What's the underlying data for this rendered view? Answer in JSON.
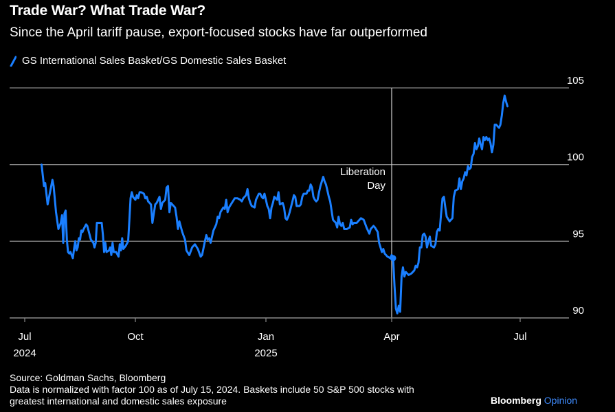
{
  "header": {
    "title": "Trade War? What Trade War?",
    "subtitle": "Since the April tariff pause, export-focused stocks have far outperformed"
  },
  "footer": {
    "source": "Source: Goldman Sachs, Bloomberg",
    "note_line1": "Data is normalized with factor 100 as of July 15, 2024. Baskets include 50 S&P 500 stocks with",
    "note_line2": "greatest international and domestic sales exposure",
    "brand_main": "Bloomberg",
    "brand_accent": "Opinion"
  },
  "chart_data": {
    "type": "line",
    "title": "Trade War? What Trade War?",
    "subtitle": "Since the April tariff pause, export-focused stocks have far outperformed",
    "xlabel": "",
    "ylabel": "",
    "ylim": [
      90,
      105
    ],
    "yticks": [
      90,
      95,
      100,
      105
    ],
    "y_axis_side": "right",
    "grid": true,
    "legend_position": "top-left",
    "x_unit": "days since 2024-07-01",
    "xlim": [
      0,
      410
    ],
    "xticks": [
      {
        "x": 0,
        "label": "Jul",
        "sublabel": "2024"
      },
      {
        "x": 92,
        "label": "Oct",
        "sublabel": ""
      },
      {
        "x": 184,
        "label": "Jan",
        "sublabel": "2025"
      },
      {
        "x": 274,
        "label": "Apr",
        "sublabel": ""
      },
      {
        "x": 365,
        "label": "Jul",
        "sublabel": ""
      }
    ],
    "annotations": [
      {
        "x": 274,
        "label_line1": "Liberation",
        "label_line2": "Day",
        "type": "vertical-line"
      }
    ],
    "marker": {
      "x": 275,
      "y": 93.9
    },
    "series": [
      {
        "name": "GS International Sales Basket/GS Domestic Sales Basket",
        "color": "#1a7fff",
        "points": [
          [
            14,
            100.0
          ],
          [
            16,
            98.6
          ],
          [
            17,
            98.8
          ],
          [
            19,
            97.4
          ],
          [
            21,
            98.2
          ],
          [
            23,
            99.0
          ],
          [
            24,
            98.6
          ],
          [
            26,
            96.9
          ],
          [
            28,
            95.8
          ],
          [
            30,
            96.2
          ],
          [
            31,
            96.7
          ],
          [
            32,
            94.9
          ],
          [
            33,
            96.8
          ],
          [
            34,
            97.0
          ],
          [
            35,
            95.1
          ],
          [
            36,
            94.3
          ],
          [
            37,
            94.2
          ],
          [
            38,
            94.3
          ],
          [
            40,
            93.9
          ],
          [
            41,
            94.5
          ],
          [
            42,
            95.0
          ],
          [
            43,
            94.4
          ],
          [
            44,
            94.6
          ],
          [
            45,
            95.2
          ],
          [
            46,
            95.1
          ],
          [
            47,
            95.7
          ],
          [
            48,
            95.6
          ],
          [
            49,
            95.8
          ],
          [
            51,
            96.1
          ],
          [
            52,
            96.0
          ],
          [
            53,
            95.7
          ],
          [
            55,
            95.1
          ],
          [
            57,
            94.9
          ],
          [
            58,
            94.6
          ],
          [
            59,
            94.9
          ],
          [
            60,
            96.2
          ],
          [
            62,
            96.2
          ],
          [
            64,
            96.2
          ],
          [
            65,
            95.4
          ],
          [
            66,
            94.3
          ],
          [
            67,
            94.9
          ],
          [
            68,
            94.3
          ],
          [
            70,
            94.4
          ],
          [
            71,
            94.6
          ],
          [
            72,
            94.1
          ],
          [
            73,
            94.9
          ],
          [
            74,
            94.3
          ],
          [
            76,
            94.3
          ],
          [
            78,
            94.0
          ],
          [
            79,
            94.8
          ],
          [
            80,
            94.4
          ],
          [
            81,
            95.2
          ],
          [
            82,
            94.5
          ],
          [
            84,
            94.7
          ],
          [
            86,
            95.0
          ],
          [
            87,
            96.4
          ],
          [
            88,
            97.8
          ],
          [
            89,
            98.2
          ],
          [
            90,
            97.9
          ],
          [
            92,
            97.7
          ],
          [
            93,
            98.0
          ],
          [
            94,
            97.8
          ],
          [
            95,
            98.2
          ],
          [
            96,
            98.2
          ],
          [
            98,
            98.1
          ],
          [
            99,
            97.8
          ],
          [
            100,
            97.9
          ],
          [
            101,
            97.6
          ],
          [
            102,
            97.5
          ],
          [
            103,
            97.4
          ],
          [
            104,
            96.2
          ],
          [
            106,
            97.4
          ],
          [
            107,
            97.5
          ],
          [
            109,
            97.9
          ],
          [
            110,
            97.1
          ],
          [
            111,
            97.5
          ],
          [
            112,
            97.6
          ],
          [
            113,
            97.7
          ],
          [
            114,
            98.5
          ],
          [
            115,
            98.6
          ],
          [
            116,
            96.9
          ],
          [
            117,
            97.5
          ],
          [
            118,
            97.4
          ],
          [
            120,
            97.2
          ],
          [
            121,
            96.6
          ],
          [
            122,
            95.8
          ],
          [
            123,
            96.3
          ],
          [
            125,
            95.6
          ],
          [
            127,
            95.1
          ],
          [
            128,
            94.4
          ],
          [
            130,
            94.1
          ],
          [
            132,
            94.6
          ],
          [
            134,
            94.8
          ],
          [
            136,
            94.5
          ],
          [
            138,
            94.0
          ],
          [
            139,
            94.1
          ],
          [
            141,
            95.0
          ],
          [
            142,
            95.4
          ],
          [
            143,
            95.1
          ],
          [
            144,
            95.2
          ],
          [
            145,
            94.9
          ],
          [
            147,
            95.7
          ],
          [
            149,
            96.1
          ],
          [
            150,
            96.6
          ],
          [
            151,
            96.5
          ],
          [
            152,
            96.9
          ],
          [
            154,
            97.2
          ],
          [
            155,
            97.1
          ],
          [
            156,
            97.7
          ],
          [
            157,
            96.9
          ],
          [
            158,
            97.2
          ],
          [
            160,
            97.5
          ],
          [
            162,
            97.8
          ],
          [
            164,
            97.8
          ],
          [
            166,
            97.7
          ],
          [
            167,
            97.6
          ],
          [
            168,
            97.8
          ],
          [
            170,
            98.0
          ],
          [
            171,
            98.4
          ],
          [
            172,
            97.8
          ],
          [
            173,
            97.5
          ],
          [
            174,
            97.3
          ],
          [
            176,
            97.2
          ],
          [
            177,
            97.7
          ],
          [
            178,
            97.9
          ],
          [
            179,
            98.1
          ],
          [
            180,
            98.1
          ],
          [
            181,
            97.9
          ],
          [
            182,
            97.8
          ],
          [
            183,
            98.1
          ],
          [
            184,
            97.7
          ],
          [
            185,
            97.3
          ],
          [
            186,
            97.1
          ],
          [
            187,
            96.5
          ],
          [
            188,
            97.2
          ],
          [
            189,
            97.5
          ],
          [
            190,
            97.9
          ],
          [
            192,
            97.7
          ],
          [
            193,
            98.2
          ],
          [
            194,
            97.4
          ],
          [
            196,
            97.5
          ],
          [
            197,
            97.2
          ],
          [
            198,
            96.5
          ],
          [
            199,
            96.4
          ],
          [
            200,
            96.6
          ],
          [
            201,
            96.9
          ],
          [
            203,
            97.6
          ],
          [
            204,
            98.0
          ],
          [
            205,
            97.9
          ],
          [
            206,
            97.3
          ],
          [
            208,
            97.3
          ],
          [
            209,
            97.4
          ],
          [
            210,
            97.9
          ],
          [
            211,
            98.1
          ],
          [
            213,
            98.1
          ],
          [
            214,
            98.3
          ],
          [
            215,
            98.3
          ],
          [
            216,
            98.7
          ],
          [
            217,
            98.5
          ],
          [
            218,
            97.9
          ],
          [
            219,
            97.7
          ],
          [
            220,
            97.6
          ],
          [
            221,
            97.7
          ],
          [
            222,
            98.2
          ],
          [
            223,
            98.6
          ],
          [
            225,
            99.2
          ],
          [
            226,
            98.9
          ],
          [
            227,
            98.7
          ],
          [
            228,
            98.3
          ],
          [
            229,
            97.9
          ],
          [
            230,
            97.6
          ],
          [
            232,
            96.4
          ],
          [
            234,
            96.2
          ],
          [
            235,
            95.9
          ],
          [
            236,
            96.6
          ],
          [
            237,
            96.1
          ],
          [
            238,
            96.0
          ],
          [
            239,
            96.2
          ],
          [
            240,
            95.8
          ],
          [
            242,
            95.8
          ],
          [
            244,
            95.9
          ],
          [
            245,
            96.4
          ],
          [
            246,
            96.1
          ],
          [
            247,
            96.2
          ],
          [
            249,
            96.2
          ],
          [
            250,
            96.3
          ],
          [
            252,
            96.5
          ],
          [
            254,
            96.4
          ],
          [
            256,
            95.9
          ],
          [
            258,
            95.5
          ],
          [
            259,
            95.8
          ],
          [
            261,
            96.0
          ],
          [
            262,
            95.9
          ],
          [
            264,
            95.6
          ],
          [
            265,
            94.9
          ],
          [
            267,
            94.3
          ],
          [
            268,
            94.5
          ],
          [
            269,
            94.2
          ],
          [
            271,
            94.0
          ],
          [
            273,
            93.9
          ],
          [
            274,
            94.1
          ],
          [
            275,
            93.9
          ],
          [
            276,
            92.1
          ],
          [
            277,
            90.6
          ],
          [
            278,
            90.3
          ],
          [
            279,
            90.8
          ],
          [
            280,
            90.4
          ],
          [
            281,
            92.7
          ],
          [
            282,
            93.3
          ],
          [
            283,
            92.7
          ],
          [
            284,
            93.0
          ],
          [
            286,
            92.8
          ],
          [
            288,
            92.9
          ],
          [
            290,
            93.1
          ],
          [
            291,
            93.4
          ],
          [
            292,
            93.3
          ],
          [
            293,
            93.6
          ],
          [
            294,
            94.6
          ],
          [
            295,
            94.6
          ],
          [
            296,
            95.4
          ],
          [
            297,
            95.5
          ],
          [
            298,
            95.3
          ],
          [
            299,
            94.6
          ],
          [
            300,
            95.0
          ],
          [
            301,
            95.3
          ],
          [
            302,
            94.7
          ],
          [
            304,
            94.6
          ],
          [
            305,
            94.8
          ],
          [
            306,
            95.6
          ],
          [
            307,
            95.8
          ],
          [
            308,
            95.7
          ],
          [
            309,
            96.8
          ],
          [
            310,
            97.8
          ],
          [
            311,
            97.9
          ],
          [
            312,
            97.2
          ],
          [
            313,
            96.6
          ],
          [
            315,
            96.3
          ],
          [
            317,
            96.5
          ],
          [
            318,
            97.9
          ],
          [
            319,
            98.3
          ],
          [
            321,
            98.4
          ],
          [
            322,
            99.1
          ],
          [
            323,
            98.4
          ],
          [
            324,
            98.9
          ],
          [
            325,
            99.1
          ],
          [
            326,
            99.5
          ],
          [
            327,
            99.3
          ],
          [
            328,
            99.9
          ],
          [
            329,
            99.7
          ],
          [
            330,
            99.8
          ],
          [
            331,
            100.5
          ],
          [
            332,
            100.7
          ],
          [
            333,
            101.4
          ],
          [
            334,
            101.0
          ],
          [
            335,
            101.2
          ],
          [
            336,
            101.7
          ],
          [
            337,
            101.3
          ],
          [
            338,
            101.0
          ],
          [
            339,
            101.8
          ],
          [
            340,
            101.6
          ],
          [
            341,
            101.8
          ],
          [
            342,
            101.6
          ],
          [
            343,
            101.7
          ],
          [
            344,
            101.4
          ],
          [
            345,
            100.8
          ],
          [
            346,
            101.3
          ],
          [
            347,
            102.6
          ],
          [
            348,
            102.6
          ],
          [
            350,
            102.4
          ],
          [
            351,
            102.6
          ],
          [
            352,
            103.2
          ],
          [
            353,
            104.0
          ],
          [
            354,
            104.5
          ],
          [
            355,
            104.1
          ],
          [
            356,
            103.8
          ]
        ]
      }
    ]
  }
}
